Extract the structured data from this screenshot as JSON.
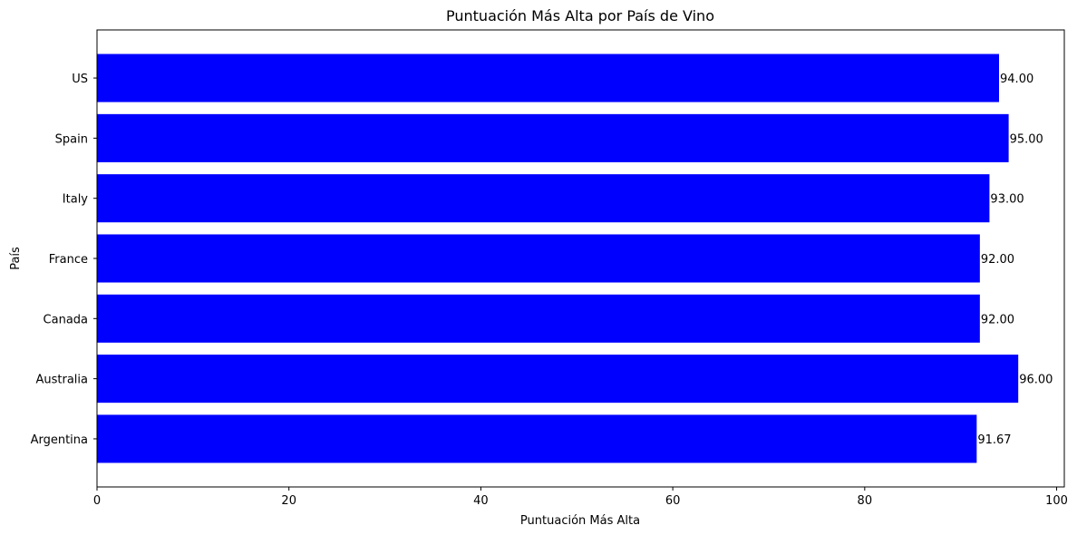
{
  "chart_data": {
    "type": "bar",
    "orientation": "horizontal",
    "title": "Puntuación Más Alta por País de Vino",
    "xlabel": "Puntuación Más Alta",
    "ylabel": "País",
    "categories": [
      "Argentina",
      "Australia",
      "Canada",
      "France",
      "Italy",
      "Spain",
      "US"
    ],
    "values": [
      91.67,
      96.0,
      92.0,
      92.0,
      93.0,
      95.0,
      94.0
    ],
    "value_labels": [
      "91.67",
      "96.00",
      "92.00",
      "92.00",
      "93.00",
      "95.00",
      "94.00"
    ],
    "xlim": [
      0,
      100.8
    ],
    "xticks": [
      0,
      20,
      40,
      60,
      80,
      100
    ],
    "bar_color": "#0000ff",
    "grid": false,
    "legend": false
  }
}
